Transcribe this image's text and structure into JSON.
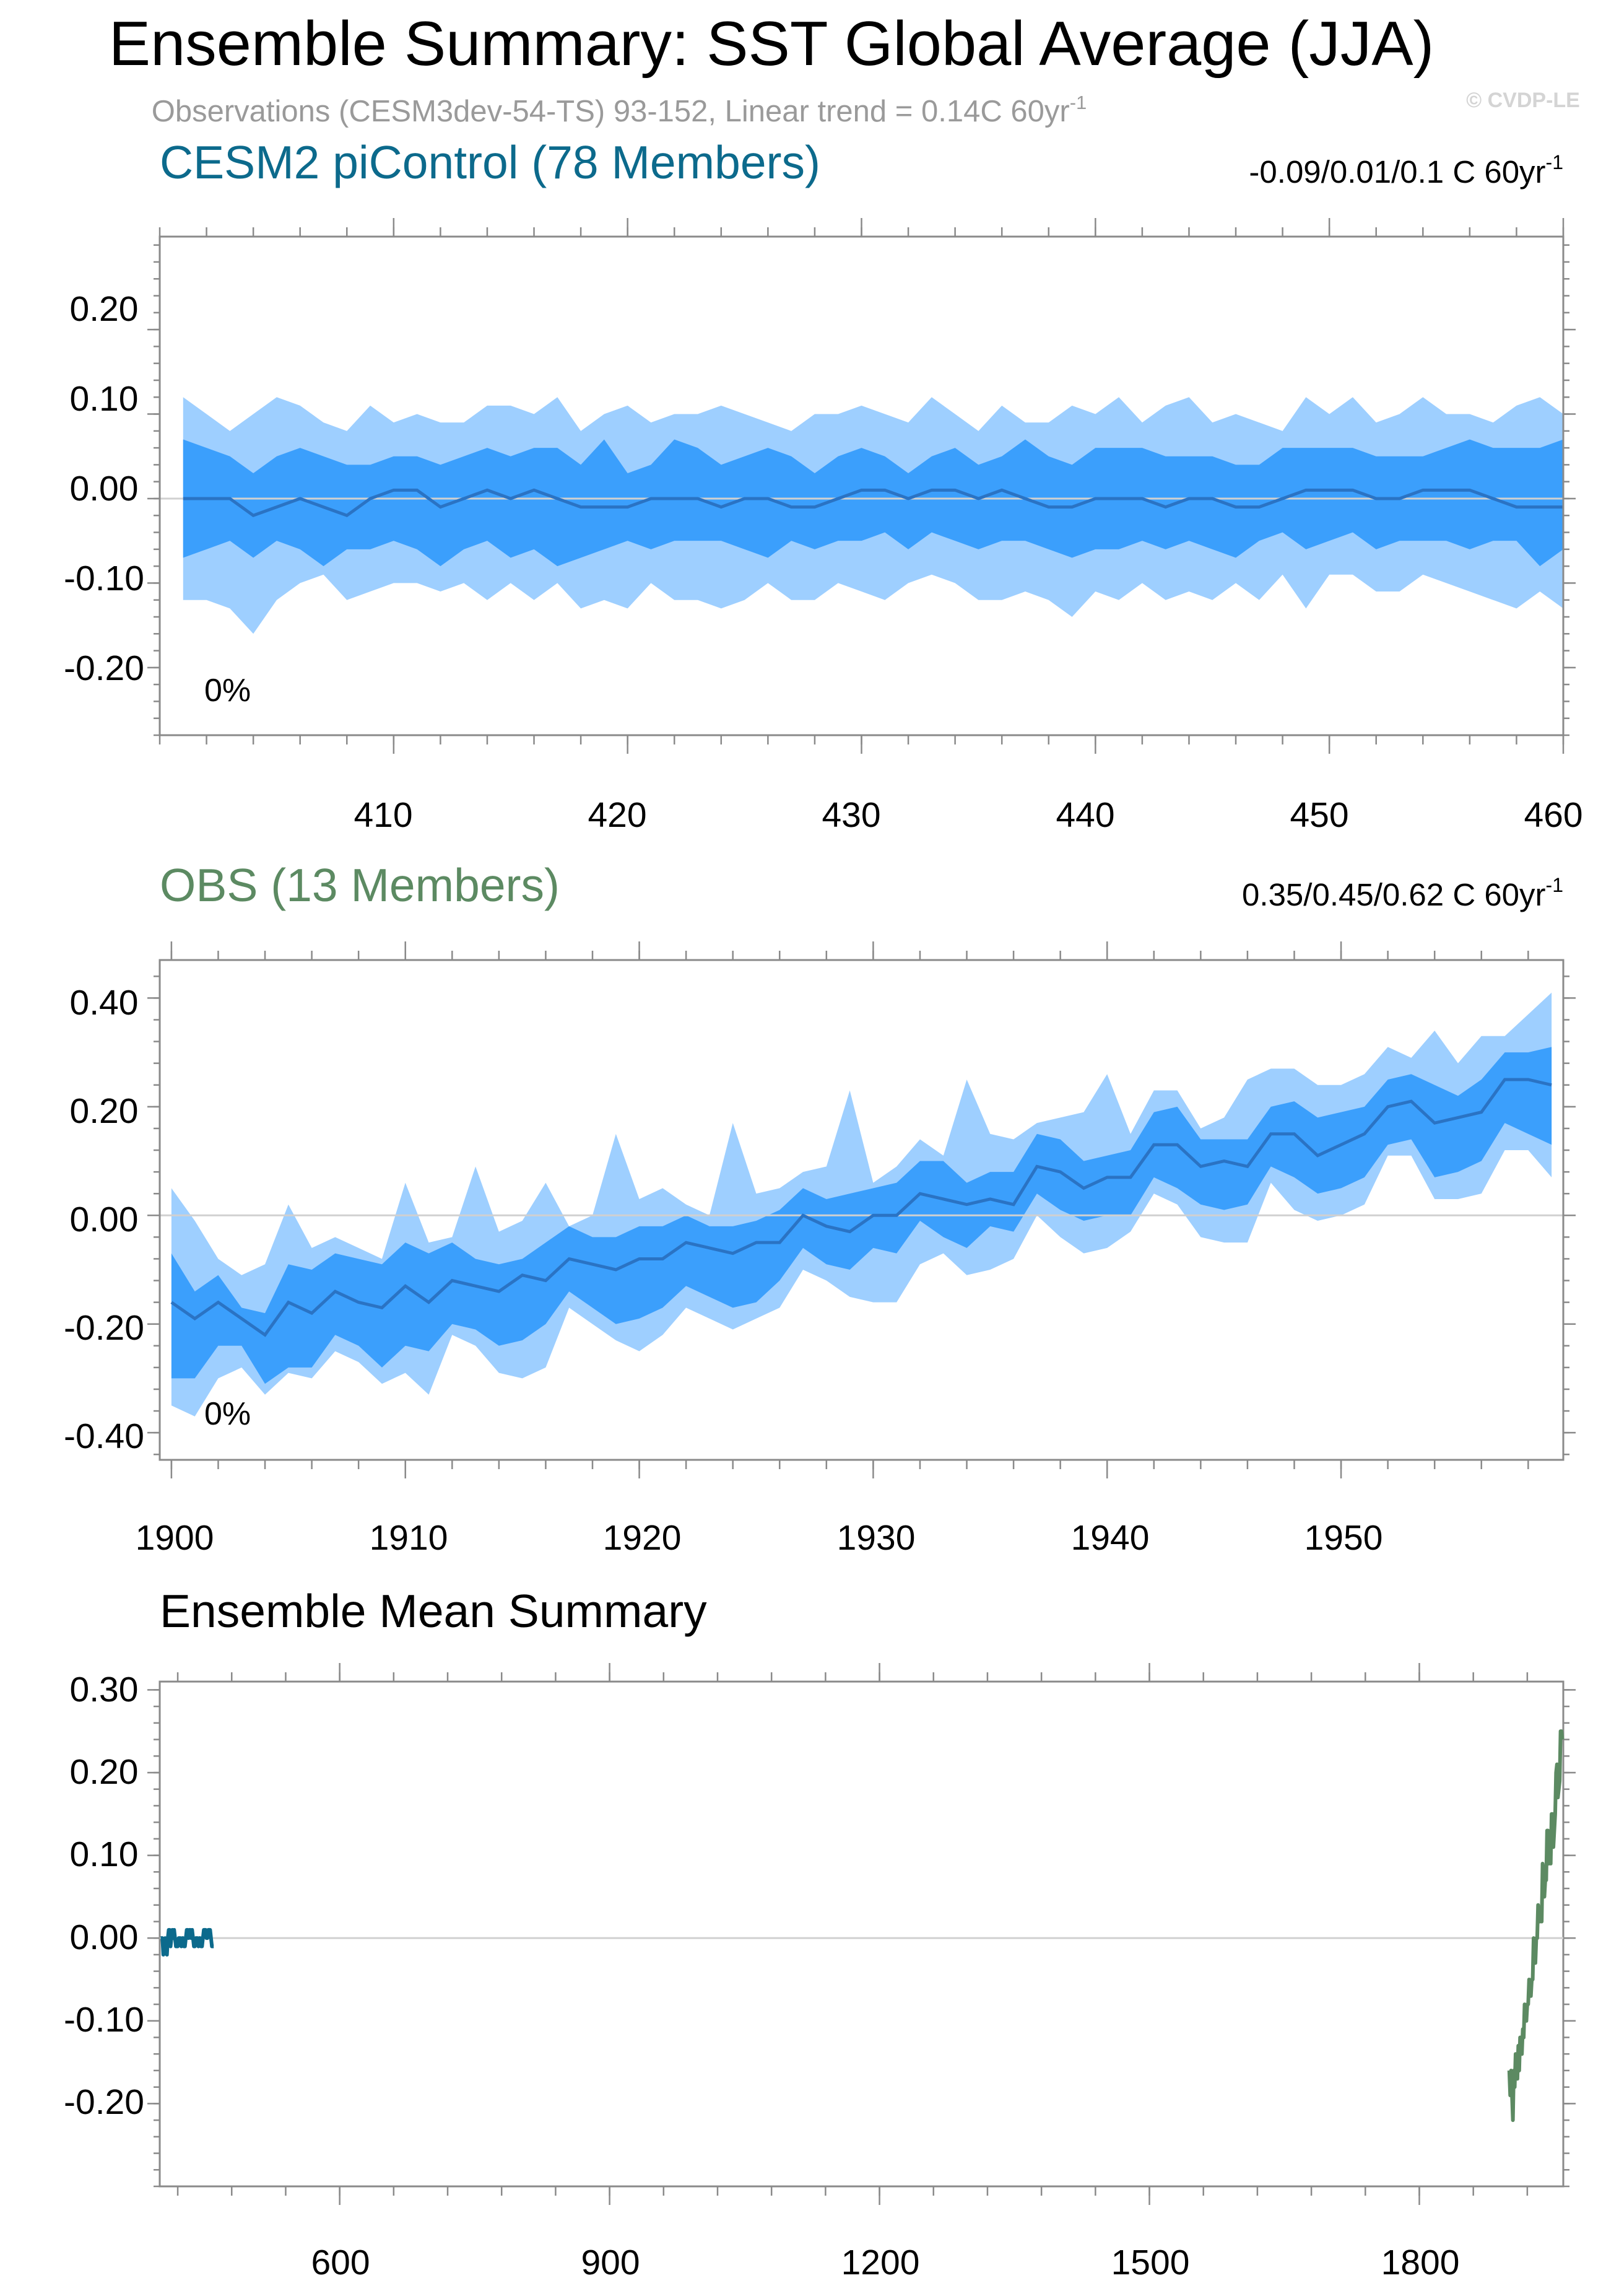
{
  "title": "Ensemble Summary: SST Global Average (JJA)",
  "subtitle": "Observations (CESM3dev-54-TS) 93-152, Linear trend = 0.14C 60yr",
  "subtitle_sup": "-1",
  "watermark": "© CVDP-LE",
  "colors": {
    "outer_band": "#9ecfff",
    "inner_band": "#3b9ffc",
    "mean_line": "#2a73c4",
    "cesm_title": "#0c6a8c",
    "obs_title": "#5c8a62"
  },
  "panel1": {
    "title": "CESM2 piControl (78 Members)",
    "trend": "-0.09/0.01/0.1 C 60yr",
    "trend_sup": "-1",
    "percent": "0%",
    "ytick_labels": [
      "0.20",
      "0.10",
      "0.00",
      "-0.10",
      "-0.20"
    ],
    "xtick_labels": [
      "410",
      "420",
      "430",
      "440",
      "450",
      "460"
    ]
  },
  "panel2": {
    "title": "OBS (13 Members)",
    "trend": "0.35/0.45/0.62 C 60yr",
    "trend_sup": "-1",
    "percent": "0%",
    "ytick_labels": [
      "0.40",
      "0.20",
      "0.00",
      "-0.20",
      "-0.40"
    ],
    "xtick_labels": [
      "1900",
      "1910",
      "1920",
      "1930",
      "1940",
      "1950"
    ]
  },
  "panel3": {
    "title": "Ensemble Mean Summary",
    "ytick_labels": [
      "0.30",
      "0.20",
      "0.10",
      "0.00",
      "-0.10",
      "-0.20"
    ],
    "xtick_labels": [
      "600",
      "900",
      "1200",
      "1500",
      "1800"
    ]
  },
  "chart_data": [
    {
      "type": "area",
      "title": "CESM2 piControl (78 Members)",
      "x_start": 401,
      "x_end": 460,
      "xlim": [
        400,
        460
      ],
      "ylim": [
        -0.28,
        0.31
      ],
      "xticks": [
        410,
        420,
        430,
        440,
        450,
        460
      ],
      "yticks": [
        0.2,
        0.1,
        0.0,
        -0.1,
        -0.2
      ],
      "mean": [
        0.0,
        0.0,
        0.0,
        -0.02,
        -0.01,
        0.0,
        -0.01,
        -0.02,
        0.0,
        0.01,
        0.01,
        -0.01,
        0.0,
        0.01,
        0.0,
        0.01,
        0.0,
        -0.01,
        -0.01,
        -0.01,
        0.0,
        0.0,
        0.0,
        -0.01,
        0.0,
        0.0,
        -0.01,
        -0.01,
        0.0,
        0.01,
        0.01,
        0.0,
        0.01,
        0.01,
        0.0,
        0.01,
        0.0,
        -0.01,
        -0.01,
        0.0,
        0.0,
        0.0,
        -0.01,
        0.0,
        0.0,
        -0.01,
        -0.01,
        0.0,
        0.01,
        0.01,
        0.01,
        0.0,
        0.0,
        0.01,
        0.01,
        0.01,
        0.0,
        -0.01,
        -0.01,
        -0.01
      ],
      "p10": [
        -0.07,
        -0.06,
        -0.05,
        -0.07,
        -0.05,
        -0.06,
        -0.08,
        -0.06,
        -0.06,
        -0.05,
        -0.06,
        -0.08,
        -0.06,
        -0.05,
        -0.07,
        -0.06,
        -0.08,
        -0.07,
        -0.06,
        -0.05,
        -0.06,
        -0.05,
        -0.05,
        -0.05,
        -0.06,
        -0.07,
        -0.05,
        -0.06,
        -0.05,
        -0.05,
        -0.04,
        -0.06,
        -0.04,
        -0.05,
        -0.06,
        -0.05,
        -0.05,
        -0.06,
        -0.07,
        -0.06,
        -0.06,
        -0.05,
        -0.06,
        -0.05,
        -0.06,
        -0.07,
        -0.05,
        -0.04,
        -0.06,
        -0.05,
        -0.04,
        -0.06,
        -0.05,
        -0.05,
        -0.05,
        -0.06,
        -0.05,
        -0.05,
        -0.08,
        -0.06
      ],
      "p90": [
        0.07,
        0.06,
        0.05,
        0.03,
        0.05,
        0.06,
        0.05,
        0.04,
        0.04,
        0.05,
        0.05,
        0.04,
        0.05,
        0.06,
        0.05,
        0.06,
        0.06,
        0.04,
        0.07,
        0.03,
        0.04,
        0.07,
        0.06,
        0.04,
        0.05,
        0.06,
        0.05,
        0.03,
        0.05,
        0.06,
        0.05,
        0.03,
        0.05,
        0.06,
        0.04,
        0.05,
        0.07,
        0.05,
        0.04,
        0.06,
        0.06,
        0.06,
        0.05,
        0.05,
        0.05,
        0.04,
        0.04,
        0.06,
        0.06,
        0.06,
        0.06,
        0.05,
        0.05,
        0.05,
        0.06,
        0.07,
        0.06,
        0.06,
        0.06,
        0.07
      ],
      "min": [
        -0.12,
        -0.12,
        -0.13,
        -0.16,
        -0.12,
        -0.1,
        -0.09,
        -0.12,
        -0.11,
        -0.1,
        -0.1,
        -0.11,
        -0.1,
        -0.12,
        -0.1,
        -0.12,
        -0.1,
        -0.13,
        -0.12,
        -0.13,
        -0.1,
        -0.12,
        -0.12,
        -0.13,
        -0.12,
        -0.1,
        -0.12,
        -0.12,
        -0.1,
        -0.11,
        -0.12,
        -0.1,
        -0.09,
        -0.1,
        -0.12,
        -0.12,
        -0.11,
        -0.12,
        -0.14,
        -0.11,
        -0.12,
        -0.1,
        -0.12,
        -0.11,
        -0.12,
        -0.1,
        -0.12,
        -0.09,
        -0.13,
        -0.09,
        -0.09,
        -0.11,
        -0.11,
        -0.09,
        -0.1,
        -0.11,
        -0.12,
        -0.13,
        -0.11,
        -0.13
      ],
      "max": [
        0.12,
        0.1,
        0.08,
        0.1,
        0.12,
        0.11,
        0.09,
        0.08,
        0.11,
        0.09,
        0.1,
        0.09,
        0.09,
        0.11,
        0.11,
        0.1,
        0.12,
        0.08,
        0.1,
        0.11,
        0.09,
        0.1,
        0.1,
        0.11,
        0.1,
        0.09,
        0.08,
        0.1,
        0.1,
        0.11,
        0.1,
        0.09,
        0.12,
        0.1,
        0.08,
        0.11,
        0.09,
        0.09,
        0.11,
        0.1,
        0.12,
        0.09,
        0.11,
        0.12,
        0.09,
        0.1,
        0.09,
        0.08,
        0.12,
        0.1,
        0.12,
        0.09,
        0.1,
        0.12,
        0.1,
        0.1,
        0.09,
        0.11,
        0.12,
        0.1
      ]
    },
    {
      "type": "area",
      "title": "OBS (13 Members)",
      "x_start": 1900,
      "x_end": 1959,
      "xlim": [
        1899.5,
        1959.5
      ],
      "ylim": [
        -0.45,
        0.47
      ],
      "xticks": [
        1900,
        1910,
        1920,
        1930,
        1940,
        1950
      ],
      "yticks": [
        0.4,
        0.2,
        0.0,
        -0.2,
        -0.4
      ],
      "mean": [
        -0.16,
        -0.19,
        -0.16,
        -0.19,
        -0.22,
        -0.16,
        -0.18,
        -0.14,
        -0.16,
        -0.17,
        -0.13,
        -0.16,
        -0.12,
        -0.13,
        -0.14,
        -0.11,
        -0.12,
        -0.08,
        -0.09,
        -0.1,
        -0.08,
        -0.08,
        -0.05,
        -0.06,
        -0.07,
        -0.05,
        -0.05,
        0.0,
        -0.02,
        -0.03,
        0.0,
        0.0,
        0.04,
        0.03,
        0.02,
        0.03,
        0.02,
        0.09,
        0.08,
        0.05,
        0.07,
        0.07,
        0.13,
        0.13,
        0.09,
        0.1,
        0.09,
        0.15,
        0.15,
        0.11,
        0.13,
        0.15,
        0.2,
        0.21,
        0.17,
        0.18,
        0.19,
        0.25,
        0.25,
        0.24
      ],
      "p10": [
        -0.3,
        -0.3,
        -0.24,
        -0.24,
        -0.31,
        -0.28,
        -0.28,
        -0.22,
        -0.24,
        -0.28,
        -0.24,
        -0.25,
        -0.2,
        -0.21,
        -0.24,
        -0.23,
        -0.2,
        -0.14,
        -0.17,
        -0.2,
        -0.19,
        -0.17,
        -0.13,
        -0.15,
        -0.17,
        -0.16,
        -0.12,
        -0.06,
        -0.09,
        -0.1,
        -0.06,
        -0.07,
        -0.01,
        -0.04,
        -0.06,
        -0.02,
        -0.03,
        0.04,
        0.01,
        -0.01,
        0.0,
        0.0,
        0.07,
        0.05,
        0.02,
        0.01,
        0.02,
        0.09,
        0.07,
        0.04,
        0.05,
        0.07,
        0.13,
        0.14,
        0.07,
        0.08,
        0.1,
        0.17,
        0.15,
        0.13
      ],
      "p90": [
        -0.07,
        -0.14,
        -0.11,
        -0.17,
        -0.18,
        -0.09,
        -0.1,
        -0.07,
        -0.08,
        -0.09,
        -0.05,
        -0.07,
        -0.05,
        -0.08,
        -0.09,
        -0.08,
        -0.05,
        -0.02,
        -0.04,
        -0.04,
        -0.02,
        -0.02,
        0.0,
        -0.02,
        -0.02,
        -0.01,
        0.01,
        0.05,
        0.03,
        0.04,
        0.05,
        0.06,
        0.1,
        0.1,
        0.06,
        0.08,
        0.08,
        0.15,
        0.14,
        0.1,
        0.11,
        0.12,
        0.19,
        0.2,
        0.14,
        0.14,
        0.14,
        0.2,
        0.21,
        0.18,
        0.19,
        0.2,
        0.25,
        0.26,
        0.24,
        0.22,
        0.25,
        0.3,
        0.3,
        0.31
      ],
      "min": [
        -0.35,
        -0.37,
        -0.3,
        -0.28,
        -0.33,
        -0.29,
        -0.3,
        -0.25,
        -0.27,
        -0.31,
        -0.29,
        -0.33,
        -0.22,
        -0.24,
        -0.29,
        -0.3,
        -0.28,
        -0.17,
        -0.2,
        -0.23,
        -0.25,
        -0.22,
        -0.17,
        -0.19,
        -0.21,
        -0.19,
        -0.17,
        -0.1,
        -0.12,
        -0.15,
        -0.16,
        -0.16,
        -0.09,
        -0.07,
        -0.11,
        -0.1,
        -0.08,
        0.0,
        -0.04,
        -0.07,
        -0.06,
        -0.03,
        0.04,
        0.02,
        -0.04,
        -0.05,
        -0.05,
        0.06,
        0.01,
        -0.01,
        0.0,
        0.02,
        0.11,
        0.11,
        0.03,
        0.03,
        0.04,
        0.12,
        0.12,
        0.07
      ],
      "max": [
        0.05,
        -0.01,
        -0.08,
        -0.11,
        -0.09,
        0.02,
        -0.06,
        -0.04,
        -0.06,
        -0.08,
        0.06,
        -0.05,
        -0.04,
        0.09,
        -0.03,
        -0.01,
        0.06,
        -0.02,
        0.0,
        0.15,
        0.03,
        0.05,
        0.02,
        0.0,
        0.17,
        0.04,
        0.05,
        0.08,
        0.09,
        0.23,
        0.06,
        0.09,
        0.14,
        0.11,
        0.25,
        0.15,
        0.14,
        0.17,
        0.18,
        0.19,
        0.26,
        0.15,
        0.23,
        0.23,
        0.16,
        0.18,
        0.25,
        0.27,
        0.27,
        0.24,
        0.24,
        0.26,
        0.31,
        0.29,
        0.34,
        0.28,
        0.33,
        0.33,
        0.37,
        0.41
      ]
    },
    {
      "type": "line",
      "title": "Ensemble Mean Summary",
      "xlim": [
        400,
        1960
      ],
      "ylim": [
        -0.3,
        0.31
      ],
      "xticks": [
        600,
        900,
        1200,
        1500,
        1800
      ],
      "yticks": [
        0.3,
        0.2,
        0.1,
        0.0,
        -0.1,
        -0.2
      ],
      "series": [
        {
          "name": "CESM2 piControl",
          "color": "#0c6a8c",
          "x_start": 401,
          "ref": "0.mean"
        },
        {
          "name": "OBS",
          "color": "#5c8a62",
          "x_start": 1900,
          "ref": "1.mean"
        }
      ]
    }
  ]
}
